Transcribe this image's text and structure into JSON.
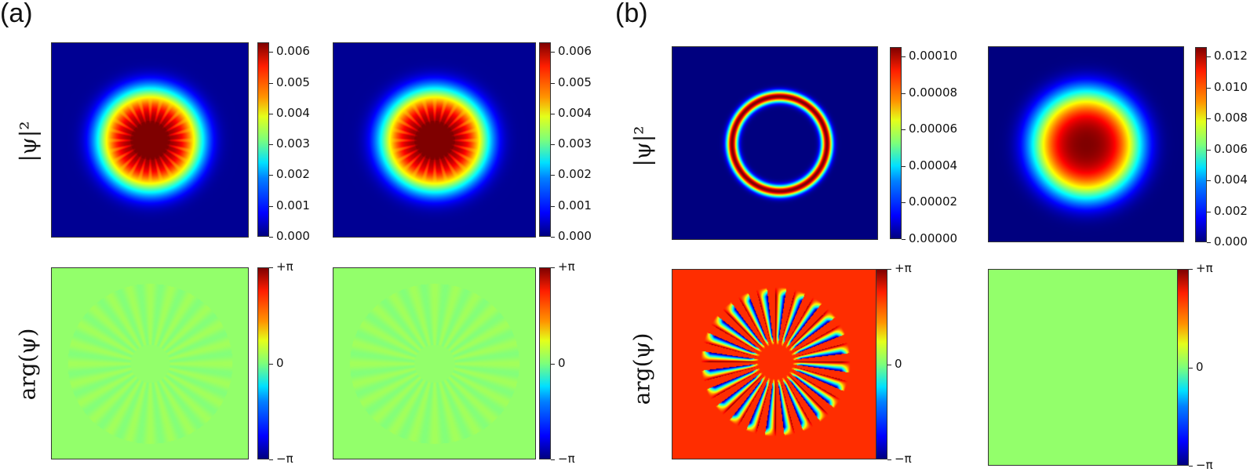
{
  "figure": {
    "labels": {
      "a": "(a)",
      "b": "(b)"
    },
    "row_labels": {
      "density": "|ψ|²",
      "phase": "arg(ψ)"
    }
  },
  "colors": {
    "background_low": "#00007f",
    "phase_zero": "#b2ff80",
    "phase_orange": "#e05a1c"
  },
  "chart_data": [
    {
      "panel": "a-top-left",
      "type": "heatmap",
      "quantity": "|ψ|²",
      "colormap": "jet",
      "pattern": "gaussian with 24-fold star modulation in core",
      "colorbar_ticks": [
        "0.000",
        "0.001",
        "0.002",
        "0.003",
        "0.004",
        "0.005",
        "0.006"
      ],
      "vmin": 0.0,
      "vmax": 0.0063
    },
    {
      "panel": "a-top-right",
      "type": "heatmap",
      "quantity": "|ψ|²",
      "colormap": "jet",
      "pattern": "gaussian with 24-fold star modulation in core",
      "colorbar_ticks": [
        "0.000",
        "0.001",
        "0.002",
        "0.003",
        "0.004",
        "0.005",
        "0.006"
      ],
      "vmin": 0.0,
      "vmax": 0.0063
    },
    {
      "panel": "a-bottom-left",
      "type": "heatmap",
      "quantity": "arg(ψ)",
      "colormap": "jet",
      "pattern": "uniform ≈0 with faint rays",
      "colorbar_ticks": [
        "−π",
        "0",
        "+π"
      ],
      "vmin": -3.1416,
      "vmax": 3.1416
    },
    {
      "panel": "a-bottom-right",
      "type": "heatmap",
      "quantity": "arg(ψ)",
      "colormap": "jet",
      "pattern": "uniform ≈0 with faint rays",
      "colorbar_ticks": [
        "−π",
        "0",
        "+π"
      ],
      "vmin": -3.1416,
      "vmax": 3.1416
    },
    {
      "panel": "b-top-left",
      "type": "heatmap",
      "quantity": "|ψ|²",
      "colormap": "jet",
      "pattern": "thin ring",
      "colorbar_ticks": [
        "0.00000",
        "0.00002",
        "0.00004",
        "0.00006",
        "0.00008",
        "0.00010"
      ],
      "vmin": 0.0,
      "vmax": 0.0001
    },
    {
      "panel": "b-top-right",
      "type": "heatmap",
      "quantity": "|ψ|²",
      "colormap": "jet",
      "pattern": "smooth gaussian",
      "colorbar_ticks": [
        "0.000",
        "0.002",
        "0.004",
        "0.006",
        "0.008",
        "0.010",
        "0.012"
      ],
      "vmin": 0.0,
      "vmax": 0.0127
    },
    {
      "panel": "b-bottom-left",
      "type": "heatmap",
      "quantity": "arg(ψ)",
      "colormap": "jet",
      "pattern": "24 vortex petals on orange background",
      "colorbar_ticks": [
        "−π",
        "0",
        "+π"
      ],
      "vmin": -3.1416,
      "vmax": 3.1416
    },
    {
      "panel": "b-bottom-right",
      "type": "heatmap",
      "quantity": "arg(ψ)",
      "colormap": "jet",
      "pattern": "uniform ≈0",
      "colorbar_ticks": [
        "−π",
        "0",
        "+π"
      ],
      "vmin": -3.1416,
      "vmax": 3.1416
    }
  ]
}
